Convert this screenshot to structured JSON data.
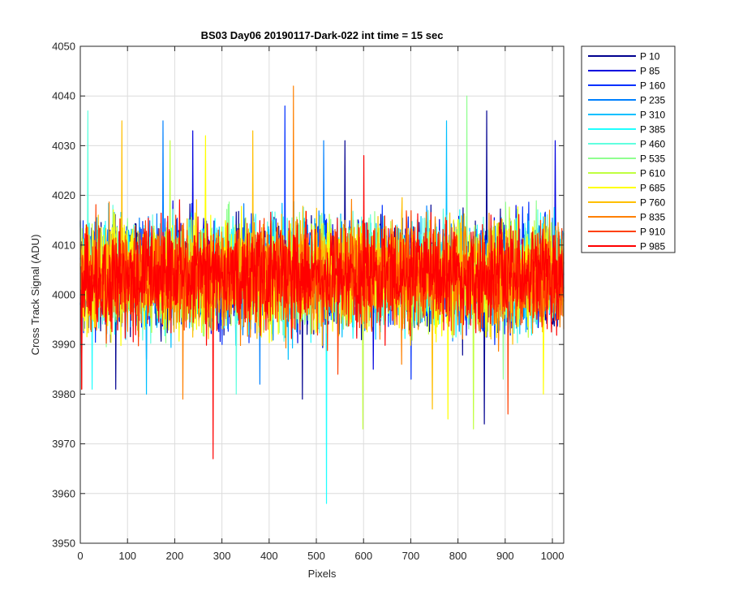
{
  "chart_data": {
    "type": "line",
    "title": "BS03 Day06 20190117-Dark-022 int time = 15 sec",
    "xlabel": "Pixels",
    "ylabel": "Cross Track Signal (ADU)",
    "xlim": [
      0,
      1024
    ],
    "ylim": [
      3950,
      4050
    ],
    "x_ticks": [
      0,
      100,
      200,
      300,
      400,
      500,
      600,
      700,
      800,
      900,
      1000
    ],
    "x_tick_labels": [
      "0",
      "100",
      "200",
      "300",
      "400",
      "500",
      "600",
      "700",
      "800",
      "900",
      "1000"
    ],
    "y_ticks": [
      3950,
      3960,
      3970,
      3980,
      3990,
      4000,
      4010,
      4020,
      4030,
      4040,
      4050
    ],
    "y_tick_labels": [
      "3950",
      "3960",
      "3970",
      "3980",
      "3990",
      "4000",
      "4010",
      "4020",
      "4030",
      "4040",
      "4050"
    ],
    "grid": true,
    "legend_position": "outside-top-right",
    "n_points": 1024,
    "series": [
      {
        "name": "P 10",
        "color": "#00008f",
        "mean": 4004,
        "halfrange": 11,
        "spikes": [
          [
            860,
            4037
          ],
          [
            855,
            3974
          ],
          [
            560,
            4031
          ],
          [
            75,
            3981
          ],
          [
            470,
            3979
          ]
        ]
      },
      {
        "name": "P 85",
        "color": "#0000df",
        "mean": 4004,
        "halfrange": 11,
        "spikes": [
          [
            238,
            4033
          ],
          [
            1005,
            4031
          ],
          [
            620,
            3985
          ],
          [
            140,
            3987
          ]
        ]
      },
      {
        "name": "P 160",
        "color": "#0030ff",
        "mean": 4004,
        "halfrange": 11,
        "spikes": [
          [
            433,
            4038
          ],
          [
            300,
            3990
          ],
          [
            700,
            3983
          ]
        ]
      },
      {
        "name": "P 235",
        "color": "#0080ff",
        "mean": 4004,
        "halfrange": 11,
        "spikes": [
          [
            175,
            4035
          ],
          [
            515,
            4031
          ],
          [
            380,
            3982
          ]
        ]
      },
      {
        "name": "P 310",
        "color": "#00c0ff",
        "mean": 4004,
        "halfrange": 11,
        "spikes": [
          [
            775,
            4035
          ],
          [
            140,
            3980
          ],
          [
            440,
            3987
          ]
        ]
      },
      {
        "name": "P 385",
        "color": "#20ffff",
        "mean": 4004,
        "halfrange": 11,
        "spikes": [
          [
            521,
            3958
          ],
          [
            25,
            3981
          ]
        ]
      },
      {
        "name": "P 460",
        "color": "#60ffdf",
        "mean": 4004,
        "halfrange": 11,
        "spikes": [
          [
            16,
            4037
          ],
          [
            330,
            3980
          ]
        ]
      },
      {
        "name": "P 535",
        "color": "#90ff90",
        "mean": 4004,
        "halfrange": 11,
        "spikes": [
          [
            818,
            4040
          ],
          [
            895,
            3983
          ]
        ]
      },
      {
        "name": "P 610",
        "color": "#c0ff40",
        "mean": 4004,
        "halfrange": 11,
        "spikes": [
          [
            598,
            3973
          ],
          [
            832,
            3973
          ],
          [
            190,
            4031
          ]
        ]
      },
      {
        "name": "P 685",
        "color": "#ffff00",
        "mean": 4004,
        "halfrange": 11,
        "spikes": [
          [
            778,
            3975
          ],
          [
            265,
            4032
          ],
          [
            980,
            3980
          ]
        ]
      },
      {
        "name": "P 760",
        "color": "#ffbf00",
        "mean": 4004,
        "halfrange": 11,
        "spikes": [
          [
            88,
            4035
          ],
          [
            745,
            3977
          ],
          [
            365,
            4033
          ]
        ]
      },
      {
        "name": "P 835",
        "color": "#ff8000",
        "mean": 4004,
        "halfrange": 11,
        "spikes": [
          [
            451,
            4042
          ],
          [
            217,
            3979
          ],
          [
            680,
            3986
          ]
        ]
      },
      {
        "name": "P 910",
        "color": "#ff4000",
        "mean": 4004,
        "halfrange": 11,
        "spikes": [
          [
            905,
            3976
          ],
          [
            3,
            3981
          ],
          [
            545,
            3984
          ]
        ]
      },
      {
        "name": "P 985",
        "color": "#ff0000",
        "mean": 4004,
        "halfrange": 11,
        "spikes": [
          [
            281,
            3967
          ],
          [
            3,
            3981
          ],
          [
            600,
            4028
          ]
        ]
      }
    ]
  }
}
